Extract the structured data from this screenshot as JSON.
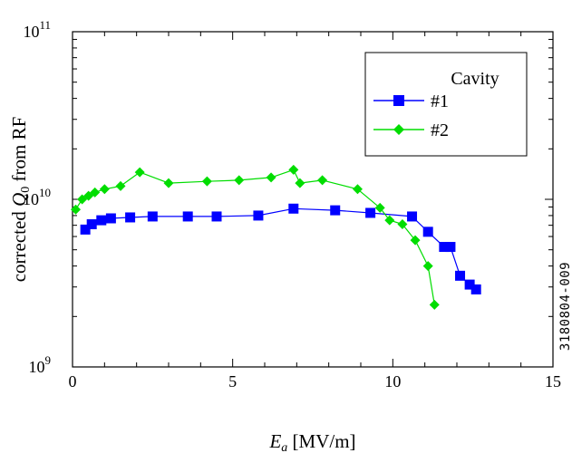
{
  "chart_data": {
    "type": "line",
    "xlabel": "E_a [MV/m]",
    "xlabel_main": "E",
    "xlabel_sub": "a",
    "xlabel_rest": " [MV/m]",
    "ylabel_prefix": "corrected ",
    "ylabel_main": "Q",
    "ylabel_sub": "0",
    "ylabel_suffix": " from RF",
    "xlim": [
      0,
      15
    ],
    "ylim": [
      1000000000,
      100000000000
    ],
    "yscale": "log",
    "x_ticks": [
      0,
      5,
      10,
      15
    ],
    "x_tick_labels": [
      "0",
      "5",
      "10",
      "15"
    ],
    "y_ticks": [
      {
        "value": 1000000000,
        "base": "10",
        "exp": "9"
      },
      {
        "value": 10000000000,
        "base": "10",
        "exp": "10"
      },
      {
        "value": 100000000000,
        "base": "10",
        "exp": "11"
      }
    ],
    "legend": {
      "title": "Cavity",
      "position": "top-right"
    },
    "series": [
      {
        "name": "#1",
        "color": "#0000ff",
        "marker": "square",
        "x": [
          0.4,
          0.6,
          0.9,
          1.2,
          1.8,
          2.5,
          3.6,
          4.5,
          5.8,
          6.9,
          8.2,
          9.3,
          10.6,
          11.1,
          11.6,
          11.8,
          12.1,
          12.4,
          12.6
        ],
        "y": [
          6600000000.0,
          7100000000.0,
          7500000000.0,
          7700000000.0,
          7800000000.0,
          7900000000.0,
          7900000000.0,
          7900000000.0,
          8000000000.0,
          8800000000.0,
          8600000000.0,
          8300000000.0,
          7900000000.0,
          6400000000.0,
          5200000000.0,
          5200000000.0,
          3500000000.0,
          3100000000.0,
          2900000000.0
        ]
      },
      {
        "name": "#2",
        "color": "#00dd00",
        "marker": "diamond",
        "x": [
          0.1,
          0.3,
          0.5,
          0.7,
          1.0,
          1.5,
          2.1,
          3.0,
          4.2,
          5.2,
          6.2,
          6.9,
          7.1,
          7.8,
          8.9,
          9.6,
          9.9,
          10.3,
          10.7,
          11.1,
          11.3
        ],
        "y": [
          8700000000.0,
          10000000000.0,
          10500000000.0,
          11000000000.0,
          11500000000.0,
          12000000000.0,
          14500000000.0,
          12500000000.0,
          12800000000.0,
          13000000000.0,
          13500000000.0,
          15000000000.0,
          12500000000.0,
          13000000000.0,
          11500000000.0,
          8900000000.0,
          7500000000.0,
          7100000000.0,
          5700000000.0,
          4000000000.0,
          2350000000.0
        ]
      }
    ]
  },
  "side_label": "3180804-009"
}
